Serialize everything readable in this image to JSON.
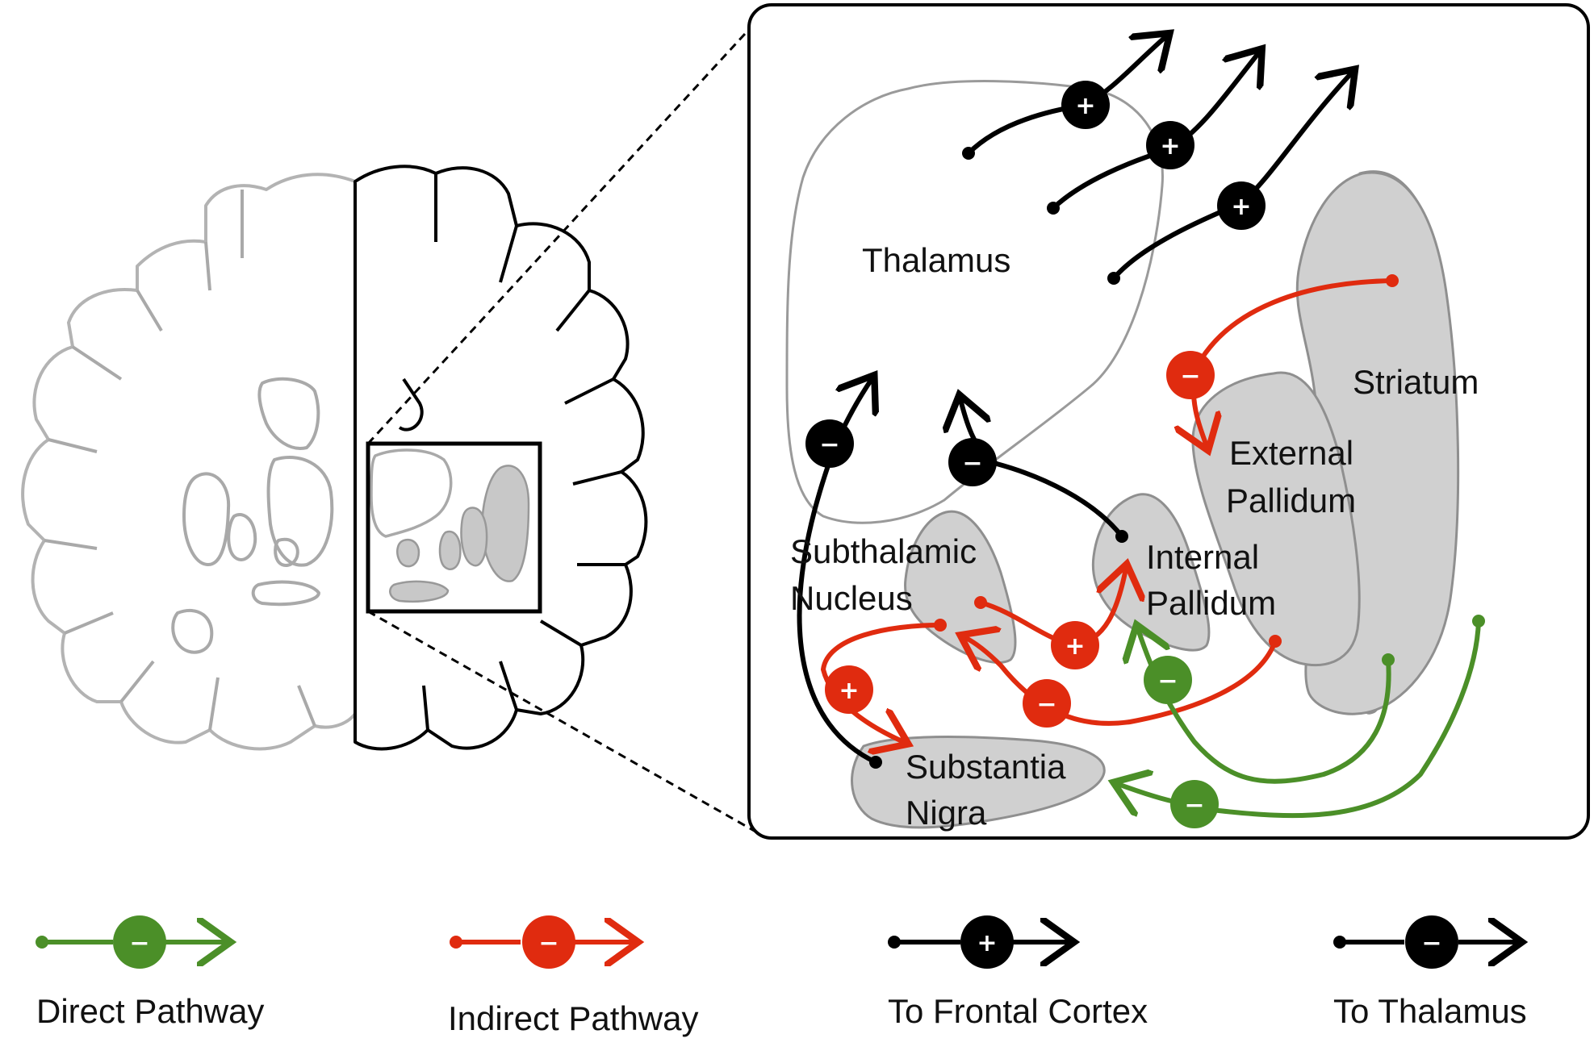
{
  "labels": {
    "thalamus": "Thalamus",
    "striatum": "Striatum",
    "external_pallidum_1": "External",
    "external_pallidum_2": "Pallidum",
    "internal_pallidum_1": "Internal",
    "internal_pallidum_2": "Pallidum",
    "subthalamic_1": "Subthalamic",
    "subthalamic_2": "Nucleus",
    "substantia_1": "Substantia",
    "substantia_2": "Nigra"
  },
  "signs": {
    "plus": "+",
    "minus": "−"
  },
  "legend": {
    "direct": "Direct Pathway",
    "indirect": "Indirect Pathway",
    "frontal": "To Frontal Cortex",
    "thalamus": "To Thalamus"
  },
  "colors": {
    "direct": "#4b8f28",
    "indirect": "#e02b0f",
    "black": "#000000",
    "region_fill": "#d0d0d0"
  }
}
